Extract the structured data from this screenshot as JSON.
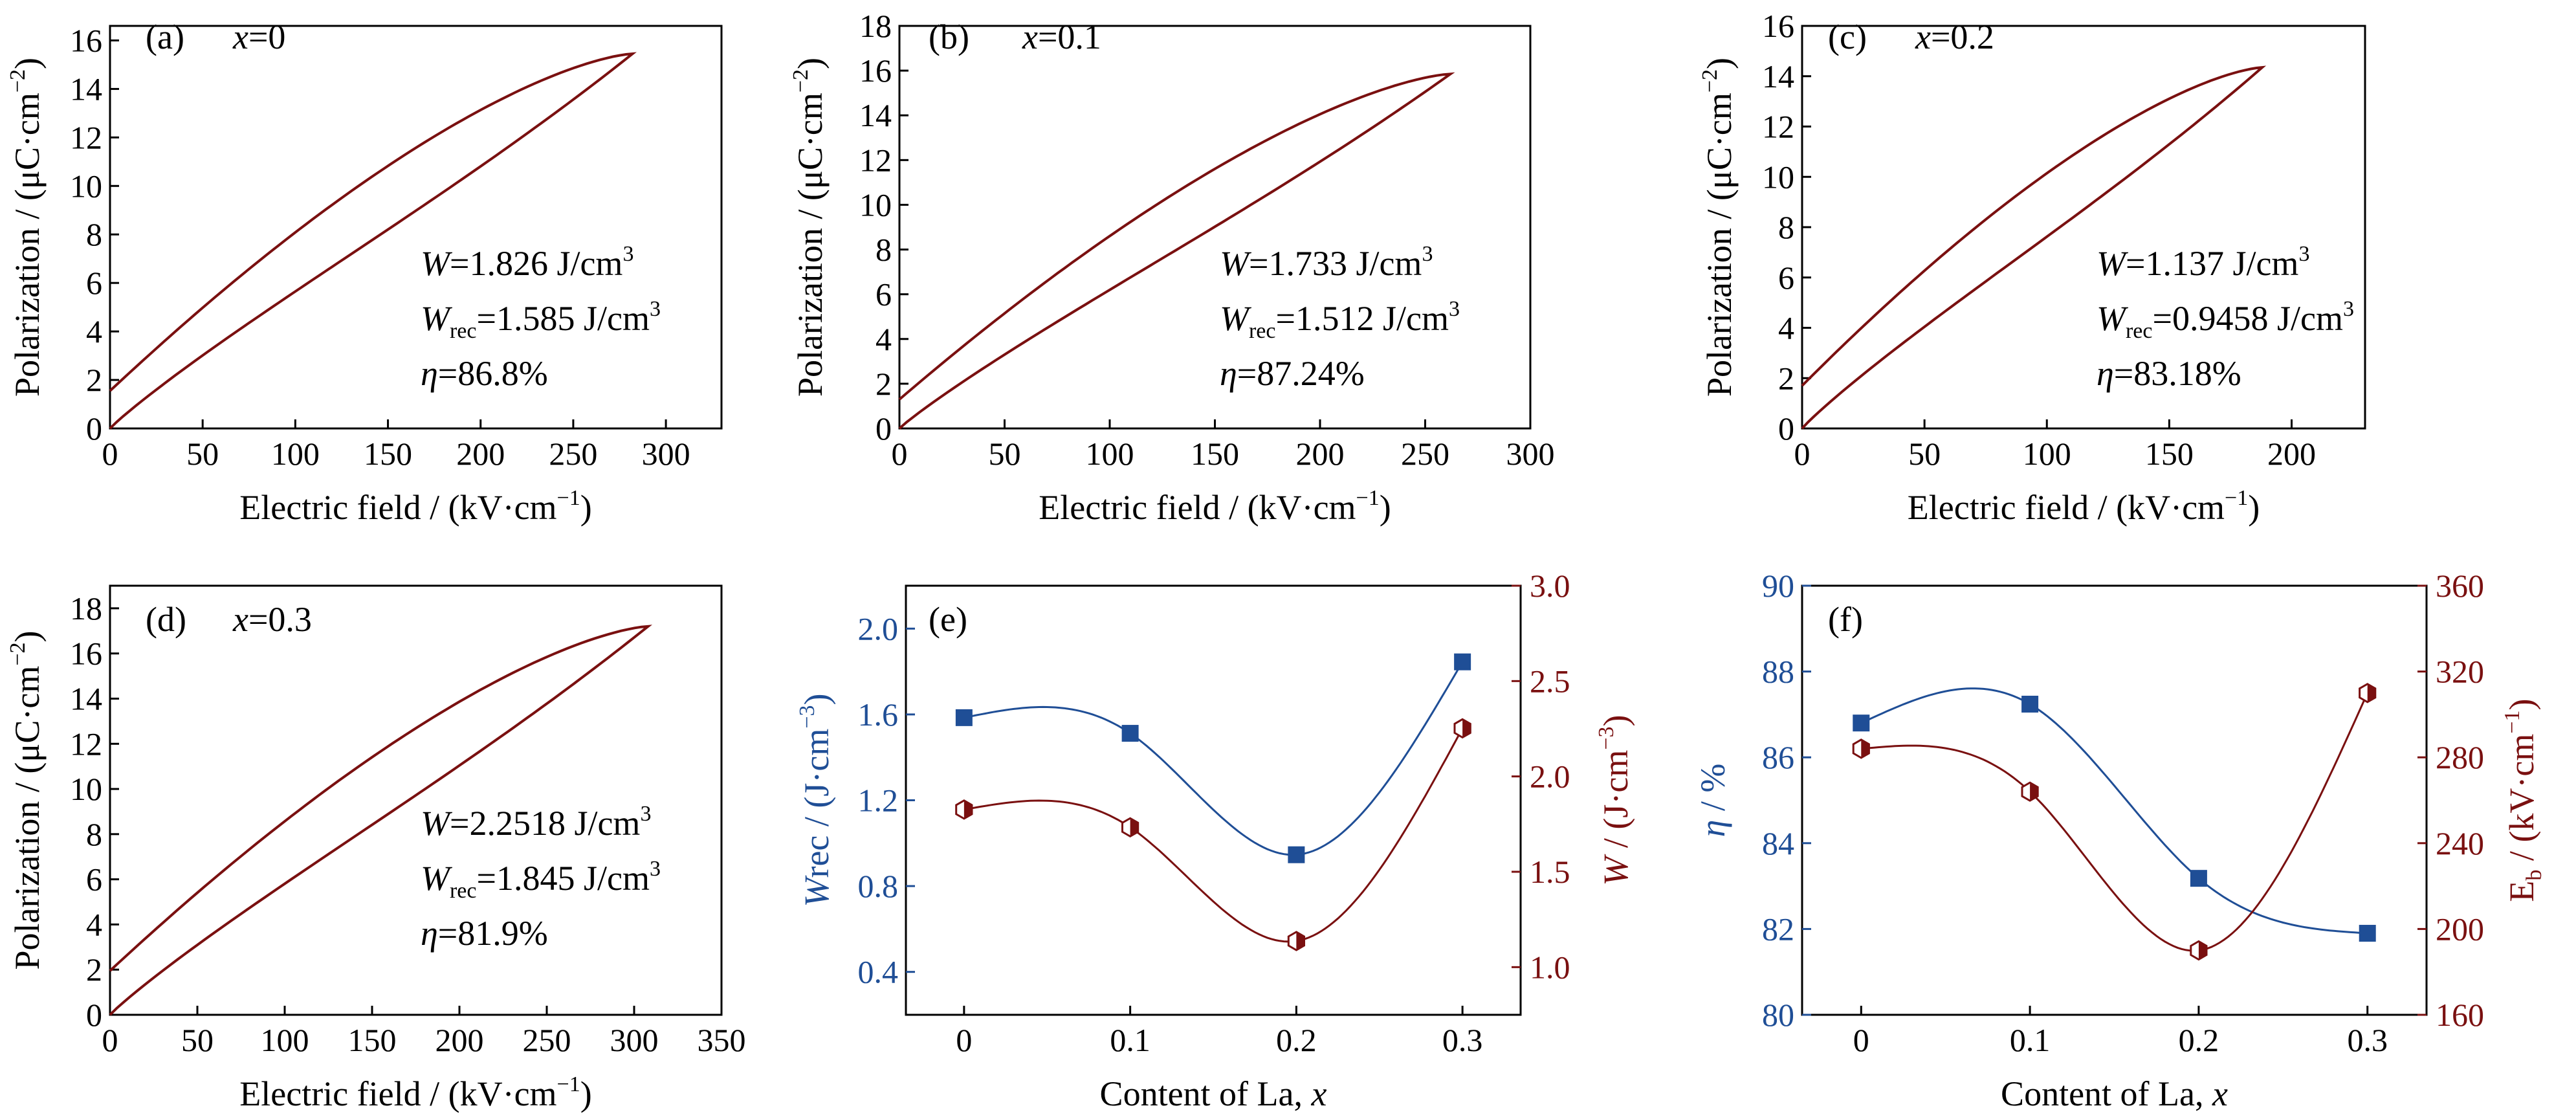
{
  "chart_data": [
    {
      "id": "a",
      "type": "line",
      "panel_label": "(a)",
      "composition": {
        "var": "x",
        "eq": "=0"
      },
      "xlabel": "Electric field / (kV·cm",
      "xlabel_sup": "−1",
      "xlabel_close": ")",
      "ylabel": "Polarization / (μC·cm",
      "ylabel_sup": "−2",
      "ylabel_close": ")",
      "xlim": [
        0,
        330
      ],
      "ylim": [
        0,
        16.6
      ],
      "xticks": [
        0,
        50,
        100,
        150,
        200,
        250,
        300
      ],
      "yticks": [
        0,
        2,
        4,
        6,
        8,
        10,
        12,
        14,
        16
      ],
      "loop": {
        "e_max": 282,
        "p_max": 15.45,
        "p_r": 1.55
      },
      "annotations": {
        "W": "W",
        "W_val": "=1.826 J/cm",
        "Wrec": "W",
        "Wrec_sub": "rec",
        "Wrec_val": "=1.585 J/cm",
        "unit_sup": "3",
        "eta": "η",
        "eta_val": "=86.8%"
      }
    },
    {
      "id": "b",
      "type": "line",
      "panel_label": "(b)",
      "composition": {
        "var": "x",
        "eq": "=0.1"
      },
      "xlabel": "Electric field / (kV·cm",
      "xlabel_sup": "−1",
      "xlabel_close": ")",
      "ylabel": "Polarization / (μC·cm",
      "ylabel_sup": "−2",
      "ylabel_close": ")",
      "xlim": [
        0,
        300
      ],
      "ylim": [
        0,
        18
      ],
      "xticks": [
        0,
        50,
        100,
        150,
        200,
        250,
        300
      ],
      "yticks": [
        0,
        2,
        4,
        6,
        8,
        10,
        12,
        14,
        16,
        18
      ],
      "loop": {
        "e_max": 262,
        "p_max": 15.85,
        "p_r": 1.3
      },
      "annotations": {
        "W": "W",
        "W_val": "=1.733 J/cm",
        "Wrec": "W",
        "Wrec_sub": "rec",
        "Wrec_val": "=1.512 J/cm",
        "unit_sup": "3",
        "eta": "η",
        "eta_val": "=87.24%"
      }
    },
    {
      "id": "c",
      "type": "line",
      "panel_label": "(c)",
      "composition": {
        "var": "x",
        "eq": "=0.2"
      },
      "xlabel": "Electric field / (kV·cm",
      "xlabel_sup": "−1",
      "xlabel_close": ")",
      "ylabel": "Polarization / (μC·cm",
      "ylabel_sup": "−2",
      "ylabel_close": ")",
      "xlim": [
        0,
        230
      ],
      "ylim": [
        0,
        16
      ],
      "xticks": [
        0,
        50,
        100,
        150,
        200
      ],
      "yticks": [
        0,
        2,
        4,
        6,
        8,
        10,
        12,
        14,
        16
      ],
      "loop": {
        "e_max": 188,
        "p_max": 14.35,
        "p_r": 1.7
      },
      "annotations": {
        "W": "W",
        "W_val": "=1.137 J/cm",
        "Wrec": "W",
        "Wrec_sub": "rec",
        "Wrec_val": "=0.9458 J/cm",
        "unit_sup": "3",
        "eta": "η",
        "eta_val": "=83.18%"
      }
    },
    {
      "id": "d",
      "type": "line",
      "panel_label": "(d)",
      "composition": {
        "var": "x",
        "eq": "=0.3"
      },
      "xlabel": "Electric field / (kV·cm",
      "xlabel_sup": "−1",
      "xlabel_close": ")",
      "ylabel": "Polarization / (μC·cm",
      "ylabel_sup": "−2",
      "ylabel_close": ")",
      "xlim": [
        0,
        350
      ],
      "ylim": [
        0,
        19
      ],
      "xticks": [
        0,
        50,
        100,
        150,
        200,
        250,
        300,
        350
      ],
      "yticks": [
        0,
        2,
        4,
        6,
        8,
        10,
        12,
        14,
        16,
        18
      ],
      "loop": {
        "e_max": 308,
        "p_max": 17.2,
        "p_r": 1.95
      },
      "annotations": {
        "W": "W",
        "W_val": "=2.2518 J/cm",
        "Wrec": "W",
        "Wrec_sub": "rec",
        "Wrec_val": "=1.845 J/cm",
        "unit_sup": "3",
        "eta": "η",
        "eta_val": "=81.9%"
      }
    },
    {
      "id": "e",
      "type": "scatter",
      "panel_label": "(e)",
      "xlabel": "Content of La, ",
      "xlabel_var": "x",
      "ylabel_left": "W",
      "ylabel_left_rest": "rec / (J·cm",
      "ylabel_left_sup": "−3",
      "ylabel_left_close": ")",
      "ylabel_right": "W",
      "ylabel_right_rest": " / (J·cm",
      "ylabel_right_sup": "−3",
      "ylabel_right_close": ")",
      "xlim": [
        -0.035,
        0.335
      ],
      "ylim_left": [
        0.2,
        2.2
      ],
      "ylim_right": [
        0.75,
        3.0
      ],
      "xticks": [
        0,
        0.1,
        0.2,
        0.3
      ],
      "xtick_labels": [
        "0",
        "0.1",
        "0.2",
        "0.3"
      ],
      "yticks_left": [
        0.4,
        0.8,
        1.2,
        1.6,
        2.0
      ],
      "ytick_labels_left": [
        "0.4",
        "0.8",
        "1.2",
        "1.6",
        "2.0"
      ],
      "yticks_right": [
        1.0,
        1.5,
        2.0,
        2.5,
        3.0
      ],
      "ytick_labels_right": [
        "1.0",
        "1.5",
        "2.0",
        "2.5",
        "3.0"
      ],
      "x": [
        0,
        0.1,
        0.2,
        0.3
      ],
      "series": [
        {
          "axis": "left",
          "marker": "square",
          "values": [
            1.585,
            1.512,
            0.946,
            1.845
          ]
        },
        {
          "axis": "right",
          "marker": "hexagon",
          "values": [
            1.826,
            1.733,
            1.137,
            2.252
          ]
        }
      ],
      "colors": {
        "left": "#1f4e96",
        "right": "#7a1010"
      }
    },
    {
      "id": "f",
      "type": "scatter",
      "panel_label": "(f)",
      "xlabel": "Content of La, ",
      "xlabel_var": "x",
      "ylabel_left": "η",
      "ylabel_left_rest": " / %",
      "ylabel_right": "E",
      "ylabel_right_sub": "b",
      "ylabel_right_rest": " / (kV·cm",
      "ylabel_right_sup": "−1",
      "ylabel_right_close": ")",
      "xlim": [
        -0.035,
        0.335
      ],
      "ylim_left": [
        80,
        90
      ],
      "ylim_right": [
        160,
        360
      ],
      "xticks": [
        0,
        0.1,
        0.2,
        0.3
      ],
      "xtick_labels": [
        "0",
        "0.1",
        "0.2",
        "0.3"
      ],
      "yticks_left": [
        80,
        82,
        84,
        86,
        88,
        90
      ],
      "ytick_labels_left": [
        "80",
        "82",
        "84",
        "86",
        "88",
        "90"
      ],
      "yticks_right": [
        160,
        200,
        240,
        280,
        320,
        360
      ],
      "ytick_labels_right": [
        "160",
        "200",
        "240",
        "280",
        "320",
        "360"
      ],
      "x": [
        0,
        0.1,
        0.2,
        0.3
      ],
      "series": [
        {
          "axis": "left",
          "marker": "square",
          "values": [
            86.8,
            87.24,
            83.18,
            81.9
          ]
        },
        {
          "axis": "right",
          "marker": "hexagon",
          "values": [
            284,
            264,
            190,
            310
          ]
        }
      ],
      "colors": {
        "left": "#1f4e96",
        "right": "#7a1010"
      }
    }
  ],
  "colors": {
    "loop": "#7a1010",
    "axis": "#000000"
  }
}
